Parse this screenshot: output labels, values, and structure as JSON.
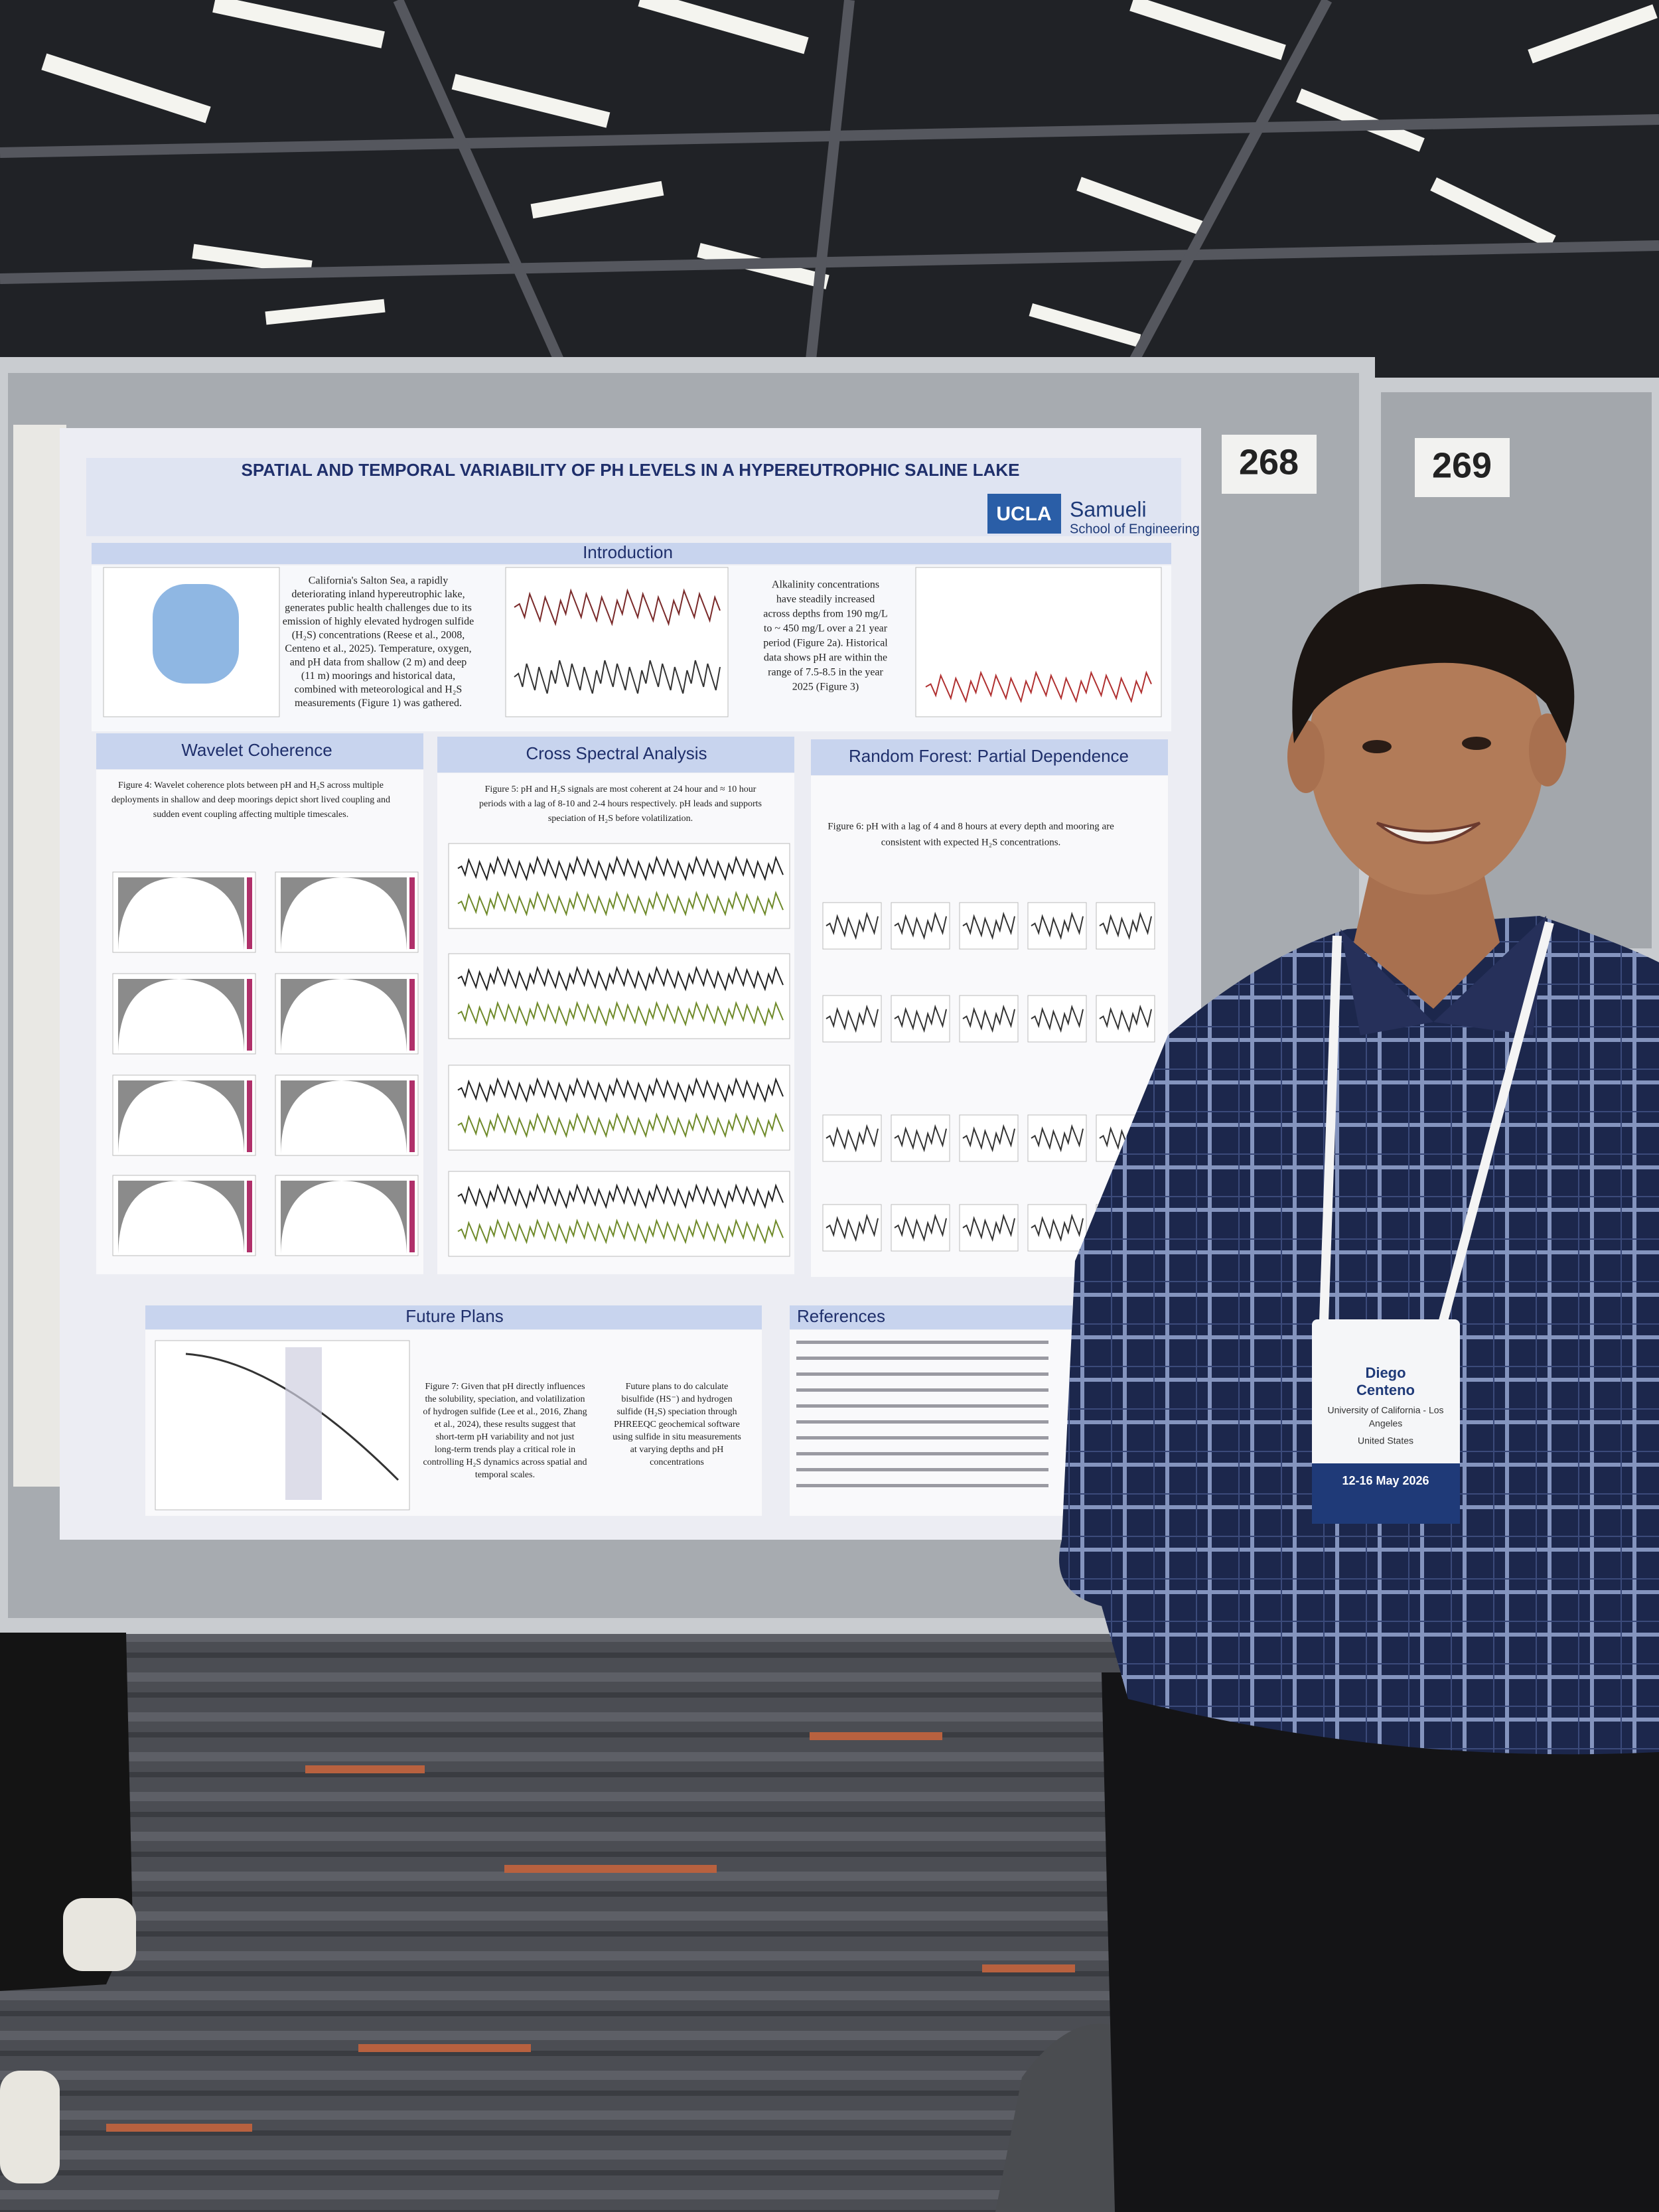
{
  "board_numbers": [
    "268",
    "269"
  ],
  "poster": {
    "title": "SPATIAL AND TEMPORAL VARIABILITY OF PH LEVELS IN A HYPEREUTROPHIC SALINE LAKE",
    "logo": "UCLA",
    "school": "Samueli",
    "school_sub": "School of Engineering",
    "sections": {
      "introduction": "Introduction",
      "wavelet": "Wavelet Coherence",
      "cross": "Cross Spectral Analysis",
      "forest": "Random Forest: Partial Dependence",
      "future": "Future Plans",
      "references": "References"
    },
    "intro_text": [
      "California's Salton Sea, a rapidly",
      "deteriorating inland hypereutrophic lake,",
      "generates public health challenges due to its",
      "emission of highly elevated hydrogen sulfide",
      "(H₂S) concentrations (Reese et al., 2008,",
      "Centeno et al., 2025). Temperature, oxygen,",
      "and pH data from shallow (2 m) and deep",
      "(11 m) moorings and historical data,",
      "combined with meteorological and H₂S",
      "measurements (Figure 1) was gathered."
    ],
    "alkalinity_text": [
      "Alkalinity concentrations",
      "have steadily increased",
      "across depths from 190 mg/L",
      "to ~ 450 mg/L over a 21 year",
      "period (Figure 2a). Historical",
      "data shows pH are within the",
      "range of 7.5-8.5 in the year",
      "2025 (Figure 3)"
    ],
    "figure4_caption": [
      "Figure 4: Wavelet coherence plots between pH and H₂S across multiple",
      "deployments in shallow and deep moorings depict short lived coupling and",
      "sudden event coupling affecting multiple timescales."
    ],
    "figure5_caption": [
      "Figure 5: pH and H₂S signals are most coherent at 24 hour and ≈ 10 hour",
      "periods with a lag of 8-10 and 2-4 hours respectively. pH leads and supports",
      "speciation of H₂S before volatilization."
    ],
    "figure6_caption": [
      "Figure 6: pH with a lag of 4 and 8 hours at every depth and mooring are",
      "consistent with expected H₂S concentrations."
    ],
    "figure7_caption": [
      "Figure 7: Given that pH directly influences",
      "the solubility, speciation, and volatilization",
      "of hydrogen sulfide (Lee et al., 2016, Zhang",
      "et al., 2024), these results suggest that",
      "short-term pH variability and not just",
      "long-term trends play a critical role in",
      "controlling H₂S dynamics across spatial and",
      "temporal scales."
    ],
    "future_text": [
      "Future plans to do calculate",
      "bisulfide (HS⁻) and hydrogen",
      "sulfide (H₂S) speciation through",
      "PHREEQC geochemical software",
      "using sulfide in situ measurements",
      "at varying depths and pH",
      "concentrations"
    ]
  },
  "badge": {
    "first_name": "Diego",
    "last_name": "Centeno",
    "affiliation": [
      "University of California - Los",
      "Angeles"
    ],
    "country": "United States",
    "dates": "12-16 May 2026"
  }
}
